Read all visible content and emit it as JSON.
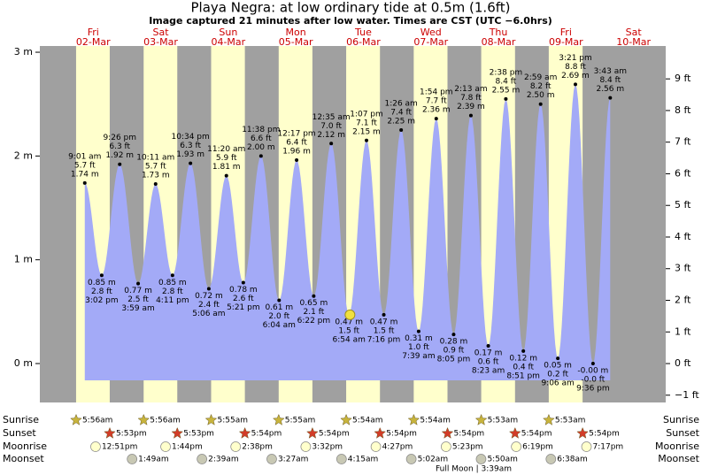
{
  "chart_data": {
    "type": "tide",
    "title": "Playa Negra: at low  ordinary tide at 0.5m (1.6ft)",
    "subtitle": "Image captured 21 minutes after low water. Times are CST (UTC −6.0hrs)",
    "footer": "Full Moon | 3:39am",
    "ylim": [
      -0.375,
      3.06
    ],
    "yticks": [
      {
        "value": 0,
        "label": "0 m"
      },
      {
        "value": 1,
        "label": "1 m"
      },
      {
        "value": 2,
        "label": "2 m"
      },
      {
        "value": 3,
        "label": "3 m"
      }
    ],
    "y2lim": [
      -1.23,
      10.04
    ],
    "y2ticks": [
      {
        "value": -1,
        "label": "−1 ft"
      },
      {
        "value": 0,
        "label": "0 ft"
      },
      {
        "value": 1,
        "label": "1 ft"
      },
      {
        "value": 2,
        "label": "2 ft"
      },
      {
        "value": 3,
        "label": "3 ft"
      },
      {
        "value": 4,
        "label": "4 ft"
      },
      {
        "value": 5,
        "label": "5 ft"
      },
      {
        "value": 6,
        "label": "6 ft"
      },
      {
        "value": 7,
        "label": "7 ft"
      },
      {
        "value": 8,
        "label": "8 ft"
      },
      {
        "value": 9,
        "label": "9 ft"
      }
    ],
    "row_labels": [
      "Sunrise",
      "Sunset",
      "Moonrise",
      "Moonset"
    ],
    "colors": {
      "night": "#a0a0a0",
      "day": "#ffffcc",
      "water": "#a3aaf7",
      "dayname": "#cc0000",
      "sunrise": "#c8b43c",
      "sunset": "#d23c28",
      "moonrise": "#ffffcc",
      "moonset": "#c8c8b4"
    },
    "days": [
      {
        "day": "Fri",
        "date": "02-Mar",
        "sunrise": "5:56am",
        "sunset": "5:53pm",
        "moonrise": "12:51pm",
        "tides": [
          {
            "time": "9:01 am",
            "value": 1.74,
            "value_label": "1.74 m",
            "feet_label": "5.7 ft"
          },
          {
            "time": "3:02 pm",
            "value": 0.85,
            "value_label": "0.85 m",
            "feet_label": "2.8 ft"
          },
          {
            "time": "9:26 pm",
            "value": 1.92,
            "value_label": "1.92 m",
            "feet_label": "6.3 ft"
          }
        ]
      },
      {
        "day": "Sat",
        "date": "03-Mar",
        "sunrise": "5:56am",
        "sunset": "5:53pm",
        "moonrise": "1:44pm",
        "moonset": "1:49am",
        "tides": [
          {
            "time": "3:59 am",
            "value": 0.77,
            "value_label": "0.77 m",
            "feet_label": "2.5 ft"
          },
          {
            "time": "10:11 am",
            "value": 1.73,
            "value_label": "1.73 m",
            "feet_label": "5.7 ft"
          },
          {
            "time": "4:11 pm",
            "value": 0.85,
            "value_label": "0.85 m",
            "feet_label": "2.8 ft"
          },
          {
            "time": "10:34 pm",
            "value": 1.93,
            "value_label": "1.93 m",
            "feet_label": "6.3 ft"
          }
        ]
      },
      {
        "day": "Sun",
        "date": "04-Mar",
        "sunrise": "5:55am",
        "sunset": "5:54pm",
        "moonrise": "2:38pm",
        "moonset": "2:39am",
        "tides": [
          {
            "time": "5:06 am",
            "value": 0.72,
            "value_label": "0.72 m",
            "feet_label": "2.4 ft"
          },
          {
            "time": "11:20 am",
            "value": 1.81,
            "value_label": "1.81 m",
            "feet_label": "5.9 ft"
          },
          {
            "time": "5:21 pm",
            "value": 0.78,
            "value_label": "0.78 m",
            "feet_label": "2.6 ft"
          },
          {
            "time": "11:38 pm",
            "value": 2.0,
            "value_label": "2.00 m",
            "feet_label": "6.6 ft"
          }
        ]
      },
      {
        "day": "Mon",
        "date": "05-Mar",
        "sunrise": "5:55am",
        "sunset": "5:54pm",
        "moonrise": "3:32pm",
        "moonset": "3:27am",
        "tides": [
          {
            "time": "6:04 am",
            "value": 0.61,
            "value_label": "0.61 m",
            "feet_label": "2.0 ft"
          },
          {
            "time": "12:17 pm",
            "value": 1.96,
            "value_label": "1.96 m",
            "feet_label": "6.4 ft"
          },
          {
            "time": "6:22 pm",
            "value": 0.65,
            "value_label": "0.65 m",
            "feet_label": "2.1 ft"
          }
        ]
      },
      {
        "day": "Tue",
        "date": "06-Mar",
        "sunrise": "5:54am",
        "sunset": "5:54pm",
        "moonrise": "4:27pm",
        "moonset": "4:15am",
        "tides": [
          {
            "time": "12:35 am",
            "value": 2.12,
            "value_label": "2.12 m",
            "feet_label": "7.0 ft"
          },
          {
            "time": "6:54 am",
            "value": 0.47,
            "value_label": "0.47 m",
            "feet_label": "1.5 ft"
          },
          {
            "time": "1:07 pm",
            "value": 2.15,
            "value_label": "2.15 m",
            "feet_label": "7.1 ft"
          },
          {
            "time": "7:16 pm",
            "value": 0.47,
            "value_label": "0.47 m",
            "feet_label": "1.5 ft"
          }
        ]
      },
      {
        "day": "Wed",
        "date": "07-Mar",
        "sunrise": "5:54am",
        "sunset": "5:54pm",
        "moonrise": "5:23pm",
        "moonset": "5:02am",
        "tides": [
          {
            "time": "1:26 am",
            "value": 2.25,
            "value_label": "2.25 m",
            "feet_label": "7.4 ft"
          },
          {
            "time": "7:39 am",
            "value": 0.31,
            "value_label": "0.31 m",
            "feet_label": "1.0 ft"
          },
          {
            "time": "1:54 pm",
            "value": 2.36,
            "value_label": "2.36 m",
            "feet_label": "7.7 ft"
          },
          {
            "time": "8:05 pm",
            "value": 0.28,
            "value_label": "0.28 m",
            "feet_label": "0.9 ft"
          }
        ]
      },
      {
        "day": "Thu",
        "date": "08-Mar",
        "sunrise": "5:53am",
        "sunset": "5:54pm",
        "moonrise": "6:19pm",
        "moonset": "5:50am",
        "tides": [
          {
            "time": "2:13 am",
            "value": 2.39,
            "value_label": "2.39 m",
            "feet_label": "7.8 ft"
          },
          {
            "time": "8:23 am",
            "value": 0.17,
            "value_label": "0.17 m",
            "feet_label": "0.6 ft"
          },
          {
            "time": "2:38 pm",
            "value": 2.55,
            "value_label": "2.55 m",
            "feet_label": "8.4 ft"
          },
          {
            "time": "8:51 pm",
            "value": 0.12,
            "value_label": "0.12 m",
            "feet_label": "0.4 ft"
          }
        ]
      },
      {
        "day": "Fri",
        "date": "09-Mar",
        "sunrise": "5:53am",
        "sunset": "5:54pm",
        "moonrise": "7:17pm",
        "moonset": "6:38am",
        "tides": [
          {
            "time": "2:59 am",
            "value": 2.5,
            "value_label": "2.50 m",
            "feet_label": "8.2 ft"
          },
          {
            "time": "9:06 am",
            "value": 0.05,
            "value_label": "0.05 m",
            "feet_label": "0.2 ft"
          },
          {
            "time": "3:21 pm",
            "value": 2.69,
            "value_label": "2.69 m",
            "feet_label": "8.8 ft"
          },
          {
            "time": "9:36 pm",
            "value": 0,
            "value_label": "-0.00 m",
            "feet_label": "-0.0 ft"
          }
        ]
      },
      {
        "day": "Sat",
        "date": "10-Mar",
        "tides": [
          {
            "time": "3:43 am",
            "value": 2.56,
            "value_label": "2.56 m",
            "feet_label": "8.4 ft"
          }
        ]
      }
    ]
  }
}
